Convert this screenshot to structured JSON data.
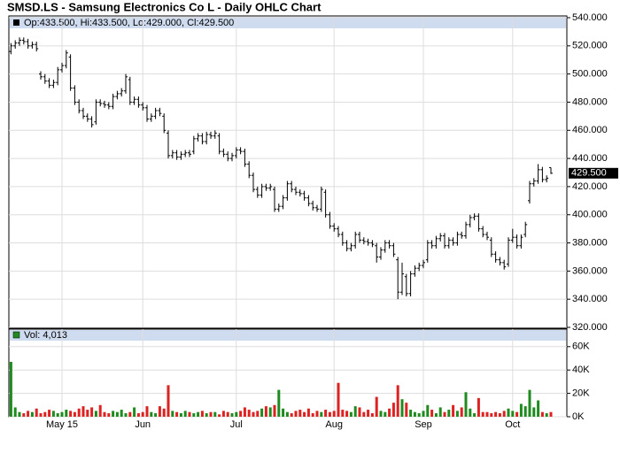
{
  "chart_data": {
    "type": "ohlc",
    "title": "SMSD.LS - Samsung Electronics Co L - Daily OHLC Chart",
    "legend_text": "Op:433.500, Hi:433.500, Lo:429.000, Cl:429.500",
    "last_price_label": "429.500",
    "bar_color": "#000000",
    "grid": true,
    "xlim": [
      -0.5,
      130.75
    ],
    "xticks": [
      {
        "value": 12,
        "label": "May 15"
      },
      {
        "value": 31,
        "label": "Jun"
      },
      {
        "value": 53,
        "label": "Jul"
      },
      {
        "value": 76,
        "label": "Aug"
      },
      {
        "value": 97,
        "label": "Sep"
      },
      {
        "value": 118,
        "label": "Oct"
      }
    ],
    "ylim": [
      320,
      540
    ],
    "yticks": [
      {
        "value": 320,
        "label": "320.000"
      },
      {
        "value": 340,
        "label": "340.000"
      },
      {
        "value": 360,
        "label": "360.000"
      },
      {
        "value": 380,
        "label": "380.000"
      },
      {
        "value": 400,
        "label": "400.000"
      },
      {
        "value": 420,
        "label": "420.000"
      },
      {
        "value": 440,
        "label": "440.000"
      },
      {
        "value": 460,
        "label": "460.000"
      },
      {
        "value": 480,
        "label": "480.000"
      },
      {
        "value": 500,
        "label": "500.000"
      },
      {
        "value": 520,
        "label": "520.000"
      },
      {
        "value": 540,
        "label": "540.000"
      }
    ],
    "open": [
      516,
      520,
      522,
      524,
      523,
      520,
      521,
      500,
      498,
      495,
      492,
      494,
      503,
      506,
      512,
      490,
      480,
      474,
      470,
      468,
      466,
      480,
      479,
      478,
      477,
      484,
      486,
      488,
      496,
      480,
      482,
      478,
      476,
      468,
      470,
      474,
      470,
      458,
      442,
      444,
      441,
      443,
      444,
      445,
      454,
      456,
      452,
      457,
      456,
      456,
      445,
      443,
      440,
      442,
      446,
      445,
      436,
      428,
      418,
      414,
      420,
      419,
      418,
      404,
      406,
      412,
      422,
      418,
      416,
      415,
      412,
      408,
      405,
      404,
      416,
      400,
      392,
      390,
      386,
      380,
      376,
      378,
      386,
      382,
      381,
      380,
      378,
      370,
      375,
      380,
      378,
      368,
      345,
      356,
      344,
      358,
      362,
      364,
      368,
      380,
      378,
      383,
      385,
      378,
      382,
      380,
      386,
      385,
      393,
      398,
      399,
      390,
      386,
      382,
      372,
      368,
      366,
      365,
      382,
      384,
      378,
      386,
      410,
      422,
      424,
      432,
      425,
      433.5
    ],
    "high": [
      522,
      524,
      526,
      526,
      525,
      523,
      523,
      502,
      500,
      497,
      496,
      505,
      508,
      517,
      514,
      492,
      482,
      476,
      472,
      470,
      482,
      482,
      481,
      480,
      486,
      488,
      490,
      500,
      498,
      484,
      484,
      480,
      478,
      472,
      476,
      476,
      472,
      460,
      446,
      446,
      445,
      446,
      446,
      456,
      458,
      458,
      459,
      459,
      460,
      458,
      447,
      445,
      444,
      448,
      448,
      447,
      438,
      430,
      420,
      422,
      422,
      422,
      420,
      408,
      414,
      424,
      424,
      420,
      418,
      417,
      414,
      410,
      407,
      420,
      418,
      402,
      394,
      392,
      388,
      382,
      380,
      388,
      388,
      384,
      383,
      382,
      380,
      377,
      382,
      382,
      380,
      370,
      366,
      358,
      360,
      364,
      366,
      368,
      382,
      382,
      385,
      387,
      387,
      384,
      384,
      388,
      388,
      395,
      400,
      401,
      401,
      392,
      388,
      384,
      374,
      370,
      368,
      384,
      390,
      386,
      386,
      395,
      424,
      426,
      436,
      434,
      428,
      433.5
    ],
    "low": [
      514,
      518,
      520,
      521,
      518,
      518,
      516,
      496,
      493,
      490,
      490,
      492,
      501,
      504,
      488,
      478,
      472,
      468,
      466,
      462,
      464,
      477,
      476,
      475,
      475,
      482,
      484,
      486,
      478,
      478,
      476,
      474,
      466,
      466,
      468,
      470,
      458,
      440,
      440,
      439,
      439,
      441,
      441,
      443,
      452,
      450,
      450,
      454,
      454,
      443,
      441,
      438,
      438,
      440,
      443,
      434,
      426,
      416,
      412,
      412,
      417,
      417,
      402,
      402,
      404,
      410,
      416,
      414,
      413,
      410,
      406,
      403,
      402,
      402,
      398,
      390,
      388,
      384,
      378,
      374,
      374,
      376,
      380,
      379,
      378,
      377,
      366,
      368,
      373,
      376,
      370,
      340,
      343,
      342,
      342,
      356,
      360,
      362,
      366,
      376,
      376,
      381,
      376,
      376,
      378,
      378,
      383,
      383,
      391,
      396,
      388,
      384,
      382,
      370,
      366,
      364,
      361,
      363,
      380,
      376,
      376,
      384,
      408,
      420,
      422,
      423,
      423,
      429
    ],
    "close": [
      520,
      522,
      524,
      523,
      520,
      521,
      518,
      498,
      495,
      492,
      494,
      503,
      506,
      515,
      490,
      480,
      474,
      470,
      468,
      464,
      480,
      479,
      478,
      477,
      484,
      486,
      488,
      498,
      480,
      482,
      478,
      476,
      468,
      470,
      474,
      472,
      460,
      442,
      444,
      441,
      443,
      444,
      443,
      454,
      456,
      452,
      457,
      456,
      458,
      445,
      443,
      440,
      442,
      446,
      445,
      436,
      428,
      418,
      414,
      420,
      419,
      420,
      404,
      406,
      412,
      422,
      418,
      416,
      415,
      412,
      408,
      405,
      404,
      418,
      400,
      392,
      390,
      386,
      380,
      376,
      378,
      386,
      382,
      381,
      380,
      379,
      370,
      375,
      380,
      378,
      372,
      345,
      358,
      344,
      358,
      362,
      364,
      366,
      380,
      378,
      383,
      385,
      378,
      382,
      380,
      386,
      385,
      393,
      398,
      399,
      390,
      386,
      384,
      372,
      368,
      366,
      363,
      382,
      384,
      378,
      384,
      393,
      422,
      424,
      432,
      425,
      426,
      429.5
    ],
    "volume": {
      "label": "Vol: 4,013",
      "up_color": "#1f8a1f",
      "down_color": "#dd2222",
      "ylim": [
        0,
        75000
      ],
      "yticks": [
        {
          "value": 0,
          "label": "0K"
        },
        {
          "value": 20000,
          "label": "20K"
        },
        {
          "value": 40000,
          "label": "40K"
        },
        {
          "value": 60000,
          "label": "60K"
        }
      ],
      "values": [
        47000,
        8000,
        4000,
        3000,
        5000,
        4000,
        7000,
        3000,
        4000,
        6000,
        5000,
        3000,
        4000,
        6000,
        5000,
        4000,
        7000,
        9000,
        6000,
        8000,
        5000,
        10000,
        4000,
        3000,
        5000,
        4000,
        6000,
        3000,
        4000,
        8000,
        3000,
        4000,
        9000,
        4000,
        3000,
        9000,
        7000,
        27000,
        5000,
        4000,
        3000,
        5000,
        4000,
        3000,
        4000,
        5000,
        3000,
        4000,
        4000,
        2000,
        5000,
        4000,
        3000,
        4000,
        5000,
        8000,
        6000,
        4000,
        5000,
        7000,
        9000,
        8000,
        10000,
        23000,
        7000,
        4000,
        3000,
        5000,
        6000,
        4000,
        7000,
        3000,
        5000,
        4000,
        6000,
        4000,
        5000,
        29000,
        6000,
        5000,
        4000,
        9000,
        8000,
        4000,
        6000,
        3000,
        17000,
        5000,
        4000,
        7000,
        12000,
        27000,
        15000,
        12000,
        6000,
        4000,
        3000,
        5000,
        10000,
        6000,
        3000,
        8000,
        4000,
        6000,
        10000,
        5000,
        8000,
        21000,
        7000,
        3000,
        16000,
        4000,
        4000,
        3000,
        4000,
        3000,
        5000,
        7000,
        5000,
        4000,
        11000,
        9000,
        23000,
        8000,
        14000,
        4000,
        3000,
        4013
      ]
    }
  }
}
